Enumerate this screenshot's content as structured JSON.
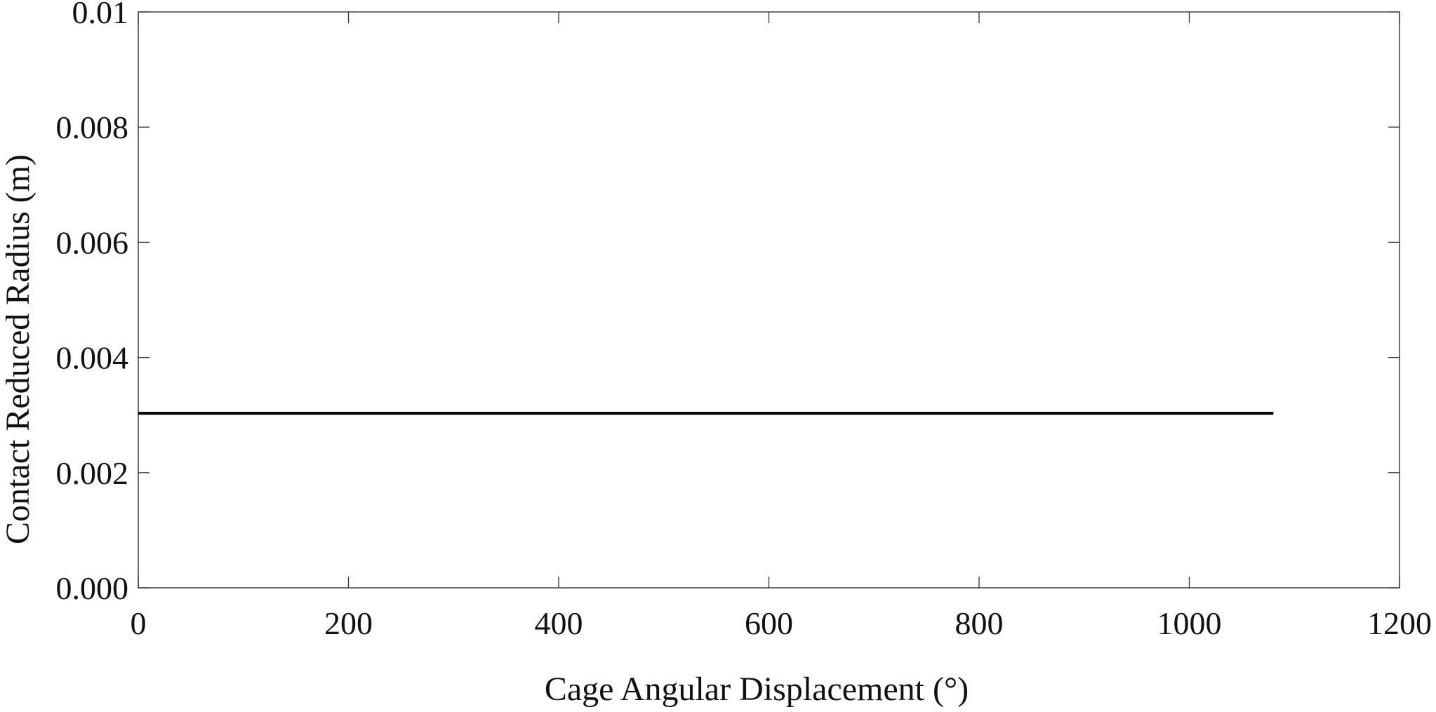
{
  "chart_data": {
    "type": "line",
    "title": "",
    "xlabel": "Cage Angular Displacement (°)",
    "ylabel": "Contact Reduced Radius (m)",
    "xlim": [
      0,
      1200
    ],
    "ylim": [
      0,
      0.01
    ],
    "x_ticks": [
      0,
      200,
      400,
      600,
      800,
      1000,
      1200
    ],
    "x_tick_labels": [
      "0",
      "200",
      "400",
      "600",
      "800",
      "1000",
      "1200"
    ],
    "y_ticks": [
      0,
      0.002,
      0.004,
      0.006,
      0.008,
      0.01
    ],
    "y_tick_labels": [
      "0.000",
      "0.002",
      "0.004",
      "0.006",
      "0.008",
      "0.01"
    ],
    "grid": false,
    "legend": "none",
    "series": [
      {
        "color": "#000000",
        "x": [
          0,
          1080
        ],
        "y": [
          0.00303,
          0.00303
        ]
      }
    ]
  }
}
